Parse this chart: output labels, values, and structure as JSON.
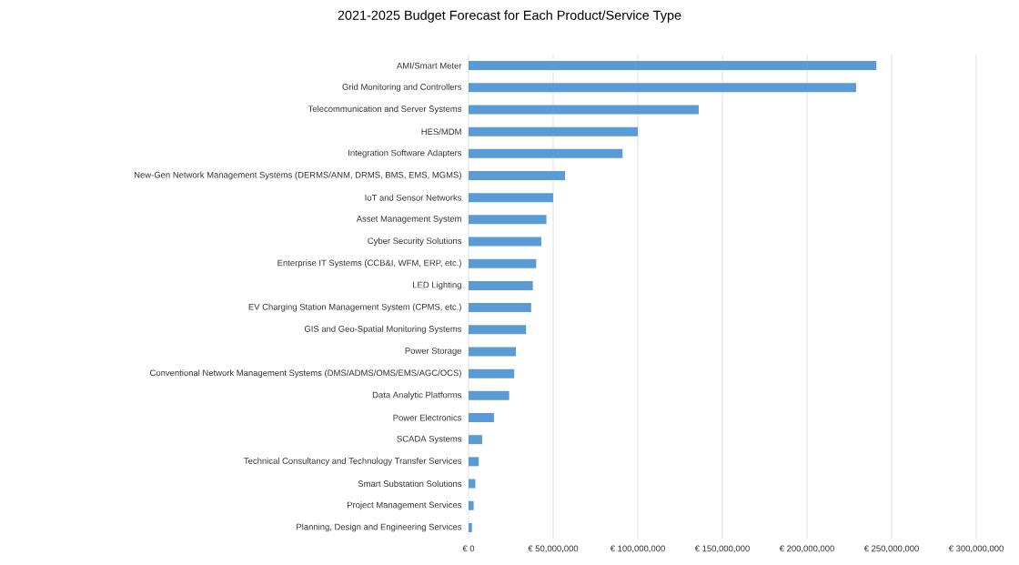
{
  "chart_data": {
    "type": "bar",
    "orientation": "horizontal",
    "title": "2021-2025 Budget Forecast for Each Product/Service Type",
    "categories": [
      "AMI/Smart Meter",
      "Grid Monitoring and Controllers",
      "Telecommunication and Server Systems",
      "HES/MDM",
      "Integration Software Adapters",
      "New-Gen Network Management Systems (DERMS/ANM, DRMS, BMS, EMS, MGMS)",
      "IoT and Sensor Networks",
      "Asset Management System",
      "Cyber Security Solutions",
      "Enterprise IT Systems (CCB&I, WFM, ERP, etc.)",
      "LED Lighting",
      "EV Charging Station Management System (CPMS, etc.)",
      "GIS and Geo-Spatial Monitoring Systems",
      "Power Storage",
      "Conventional Network Management Systems (DMS/ADMS/OMS/EMS/AGC/OCS)",
      "Data Analytic Platforms",
      "Power Electronics",
      "SCADA Systems",
      "Technical Consultancy and Technology Transfer Services",
      "Smart Substation Solutions",
      "Project Management Services",
      "Planning, Design and Engineering Services"
    ],
    "values": [
      241000000,
      229000000,
      136000000,
      100000000,
      91000000,
      57000000,
      50000000,
      46000000,
      43000000,
      40000000,
      38000000,
      37000000,
      34000000,
      28000000,
      27000000,
      24000000,
      15000000,
      8000000,
      6000000,
      4000000,
      3000000,
      2000000
    ],
    "color": "#5b9bd5",
    "xlim": [
      0,
      300000000
    ],
    "xticks": [
      {
        "value": 0,
        "label": "€ 0"
      },
      {
        "value": 50000000,
        "label": "€ 50,000,000"
      },
      {
        "value": 100000000,
        "label": "€ 100,000,000"
      },
      {
        "value": 150000000,
        "label": "€ 150,000,000"
      },
      {
        "value": 200000000,
        "label": "€ 200,000,000"
      },
      {
        "value": 250000000,
        "label": "€ 250,000,000"
      },
      {
        "value": 300000000,
        "label": "€ 300,000,000"
      }
    ],
    "grid": "x"
  }
}
